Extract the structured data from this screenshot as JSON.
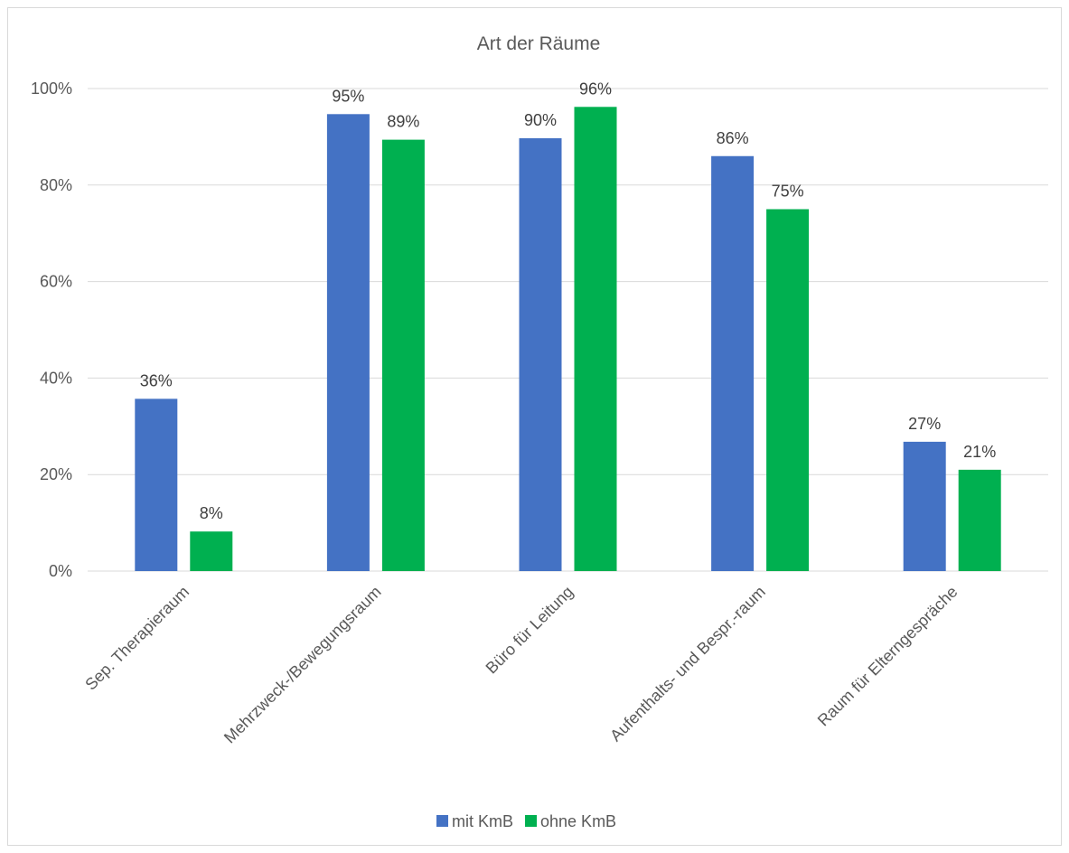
{
  "chart_data": {
    "type": "bar",
    "title": "Art der Räume",
    "categories": [
      "Sep. Therapieraum",
      "Mehrzweck-/Bewegungsraum",
      "Büro für Leitung",
      "Aufenthalts- und Bespr.-raum",
      "Raum für Elterngespräche"
    ],
    "series": [
      {
        "name": "mit KmB",
        "color": "#4472C4",
        "values": [
          0.357,
          0.947,
          0.897,
          0.86,
          0.268
        ],
        "labels": [
          "36%",
          "95%",
          "90%",
          "86%",
          "27%"
        ]
      },
      {
        "name": "ohne KmB",
        "color": "#00B050",
        "values": [
          0.082,
          0.894,
          0.962,
          0.75,
          0.21
        ],
        "labels": [
          "8%",
          "89%",
          "96%",
          "75%",
          "21%"
        ]
      }
    ],
    "y_ticks": [
      0,
      0.2,
      0.4,
      0.6,
      0.8,
      1.0
    ],
    "y_tick_labels": [
      "0%",
      "20%",
      "40%",
      "60%",
      "80%",
      "100%"
    ],
    "ylim": [
      0,
      1.0
    ],
    "grid": true,
    "legend_position": "bottom",
    "gridline_color": "#d9d9d9",
    "text_color": "#595959"
  }
}
